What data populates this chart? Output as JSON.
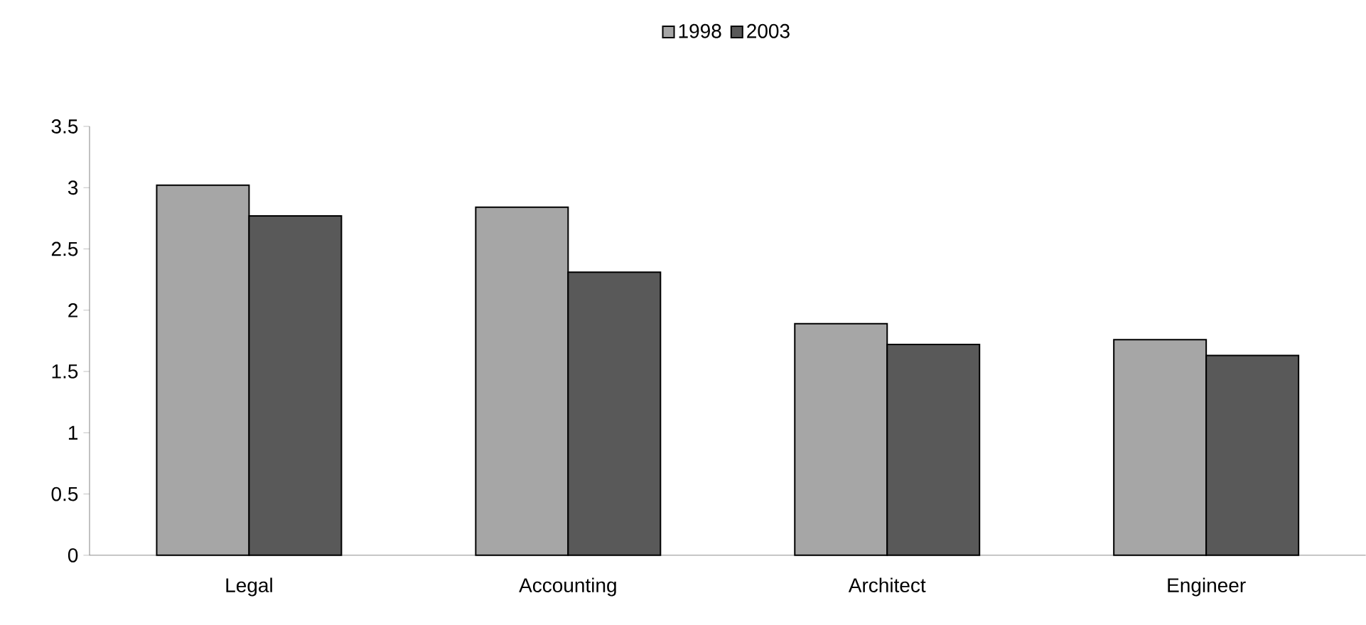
{
  "chart_data": {
    "type": "bar",
    "categories": [
      "Legal",
      "Accounting",
      "Architect",
      "Engineer"
    ],
    "series": [
      {
        "name": "1998",
        "color": "#a6a6a6",
        "values": [
          3.02,
          2.84,
          1.89,
          1.76
        ]
      },
      {
        "name": "2003",
        "color": "#595959",
        "values": [
          2.77,
          2.31,
          1.72,
          1.63
        ]
      }
    ],
    "ylim": [
      0,
      3.5
    ],
    "yticks": [
      0,
      0.5,
      1,
      1.5,
      2,
      2.5,
      3,
      3.5
    ],
    "legend": "top",
    "grid": false
  }
}
